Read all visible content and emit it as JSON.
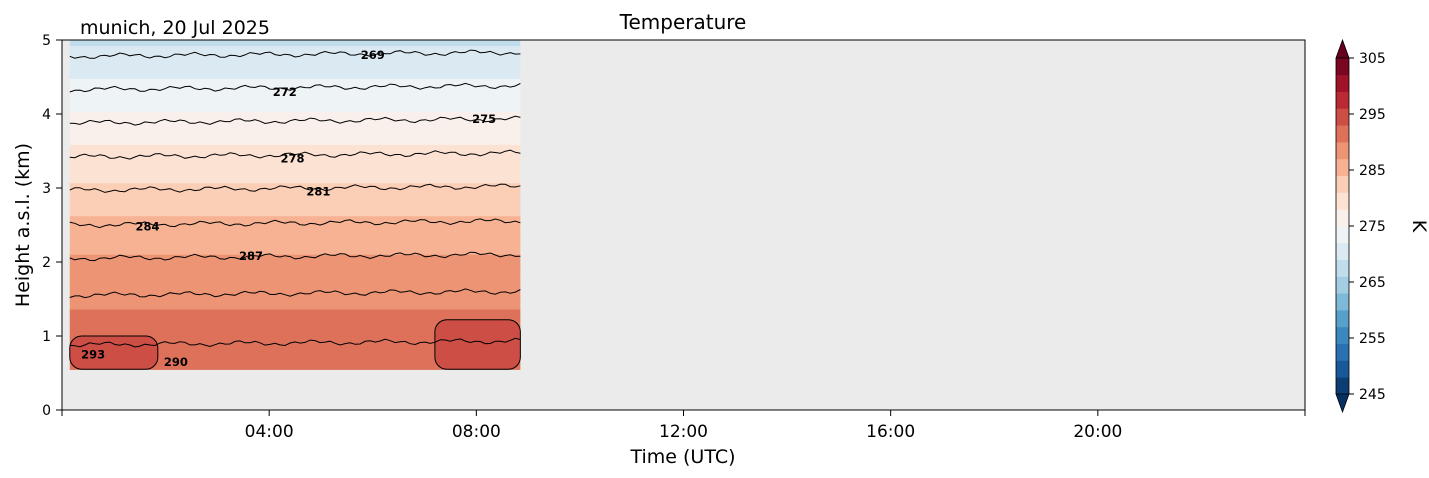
{
  "chart_data": {
    "type": "heatmap",
    "title": "Temperature",
    "subtitle": "munich, 20 Jul 2025",
    "xlabel": "Time (UTC)",
    "ylabel": "Height a.s.l. (km)",
    "xlim_hours": [
      0,
      24
    ],
    "ylim": [
      0,
      5
    ],
    "x_ticks": [
      {
        "hour": 4,
        "label": "04:00"
      },
      {
        "hour": 8,
        "label": "08:00"
      },
      {
        "hour": 12,
        "label": "12:00"
      },
      {
        "hour": 16,
        "label": "16:00"
      },
      {
        "hour": 20,
        "label": "20:00"
      }
    ],
    "y_ticks": [
      0,
      1,
      2,
      3,
      4,
      5
    ],
    "data_extent": {
      "x_hours": [
        0.15,
        8.85
      ],
      "height_km": [
        0.55,
        5.0
      ]
    },
    "no_data_color": "#ebebeb",
    "colorbar": {
      "label": "K",
      "min": 245,
      "max": 305,
      "ticks": [
        245,
        255,
        265,
        275,
        285,
        295,
        305
      ],
      "colormap": "RdBu_r",
      "extend": "both"
    },
    "profile": {
      "height_km": [
        0.55,
        1.0,
        1.5,
        2.0,
        2.5,
        3.0,
        3.5,
        4.0,
        4.5,
        5.0
      ],
      "temperature_K": [
        292.5,
        291.5,
        289.5,
        287.5,
        285.0,
        281.5,
        278.5,
        275.5,
        272.0,
        268.5
      ]
    },
    "contour_lines": [
      {
        "level": 269,
        "height_km": 4.78
      },
      {
        "level": 272,
        "height_km": 4.33
      },
      {
        "level": 275,
        "height_km": 3.88
      },
      {
        "level": 278,
        "height_km": 3.42
      },
      {
        "level": 281,
        "height_km": 2.97
      },
      {
        "level": 284,
        "height_km": 2.5
      },
      {
        "level": 287,
        "height_km": 2.05
      },
      {
        "level": 290,
        "height_km": 1.55
      },
      {
        "level": 293,
        "height_km": 0.88
      }
    ],
    "contour_labels": [
      {
        "text": "269",
        "hour": 6.0,
        "height_km": 4.8
      },
      {
        "text": "272",
        "hour": 4.3,
        "height_km": 4.3
      },
      {
        "text": "275",
        "hour": 8.15,
        "height_km": 3.93
      },
      {
        "text": "278",
        "hour": 4.45,
        "height_km": 3.4
      },
      {
        "text": "281",
        "hour": 4.95,
        "height_km": 2.95
      },
      {
        "text": "284",
        "hour": 1.65,
        "height_km": 2.48
      },
      {
        "text": "287",
        "hour": 3.65,
        "height_km": 2.08
      },
      {
        "text": "290",
        "hour": 2.2,
        "height_km": 0.65
      },
      {
        "text": "293",
        "hour": 0.6,
        "height_km": 0.75
      }
    ],
    "warm_patches": [
      {
        "hour_start": 0.15,
        "hour_end": 1.85,
        "height_start_km": 0.55,
        "height_end_km": 1.0
      },
      {
        "hour_start": 7.2,
        "hour_end": 8.85,
        "height_start_km": 0.55,
        "height_end_km": 1.22
      }
    ]
  }
}
